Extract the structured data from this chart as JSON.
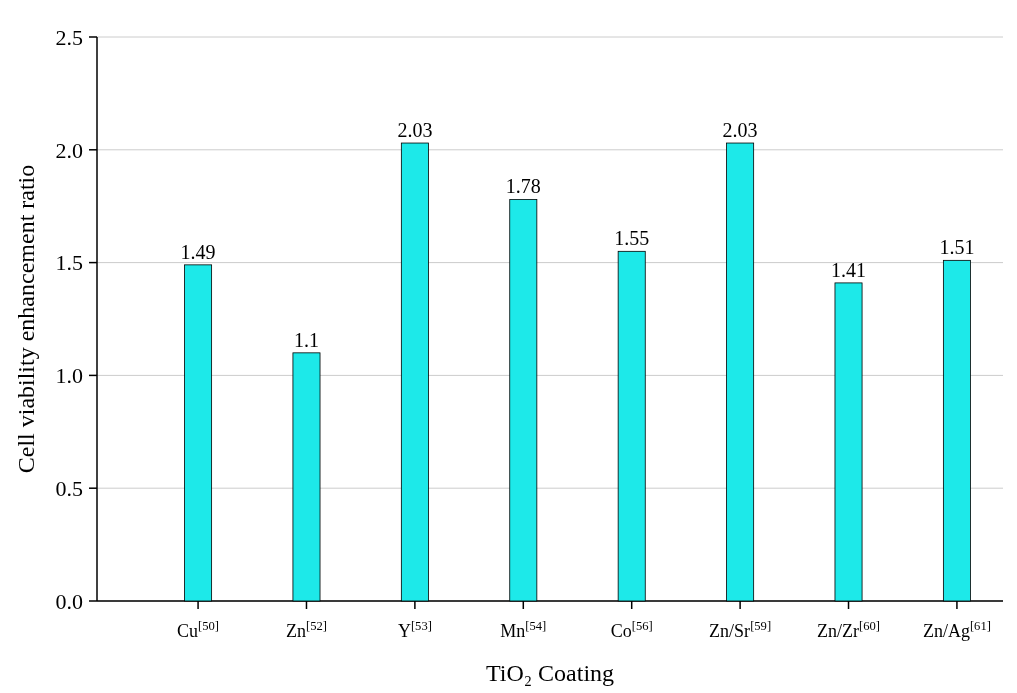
{
  "chart_data": {
    "type": "bar",
    "xlabel": "TiO₂ Coating",
    "ylabel": "Cell viability enhancement ratio",
    "categories": [
      "Cu$^{[50]}$",
      "Zn$^{[52]}$",
      "Y$^{[53]}$",
      "Mn$^{[54]}$",
      "Co$^{[56]}$",
      "Zn/Sr$^{[59]}$",
      "Zn/Zr$^{[60]}$",
      "Zn/Ag$^{[61]}$"
    ],
    "values": [
      1.49,
      1.1,
      2.03,
      1.78,
      1.55,
      2.03,
      1.41,
      1.51
    ],
    "color": "#1de9e9",
    "data_labels": true,
    "ylim": [
      0,
      2.5
    ],
    "yticks": [
      {
        "value": 0,
        "label": "0.0"
      },
      {
        "value": 0.5,
        "label": "0.5"
      },
      {
        "value": 1,
        "label": "1.0"
      },
      {
        "value": 1.5,
        "label": "1.5"
      },
      {
        "value": 2,
        "label": "2.0"
      },
      {
        "value": 2.5,
        "label": "2.5"
      }
    ],
    "grid": "y"
  }
}
